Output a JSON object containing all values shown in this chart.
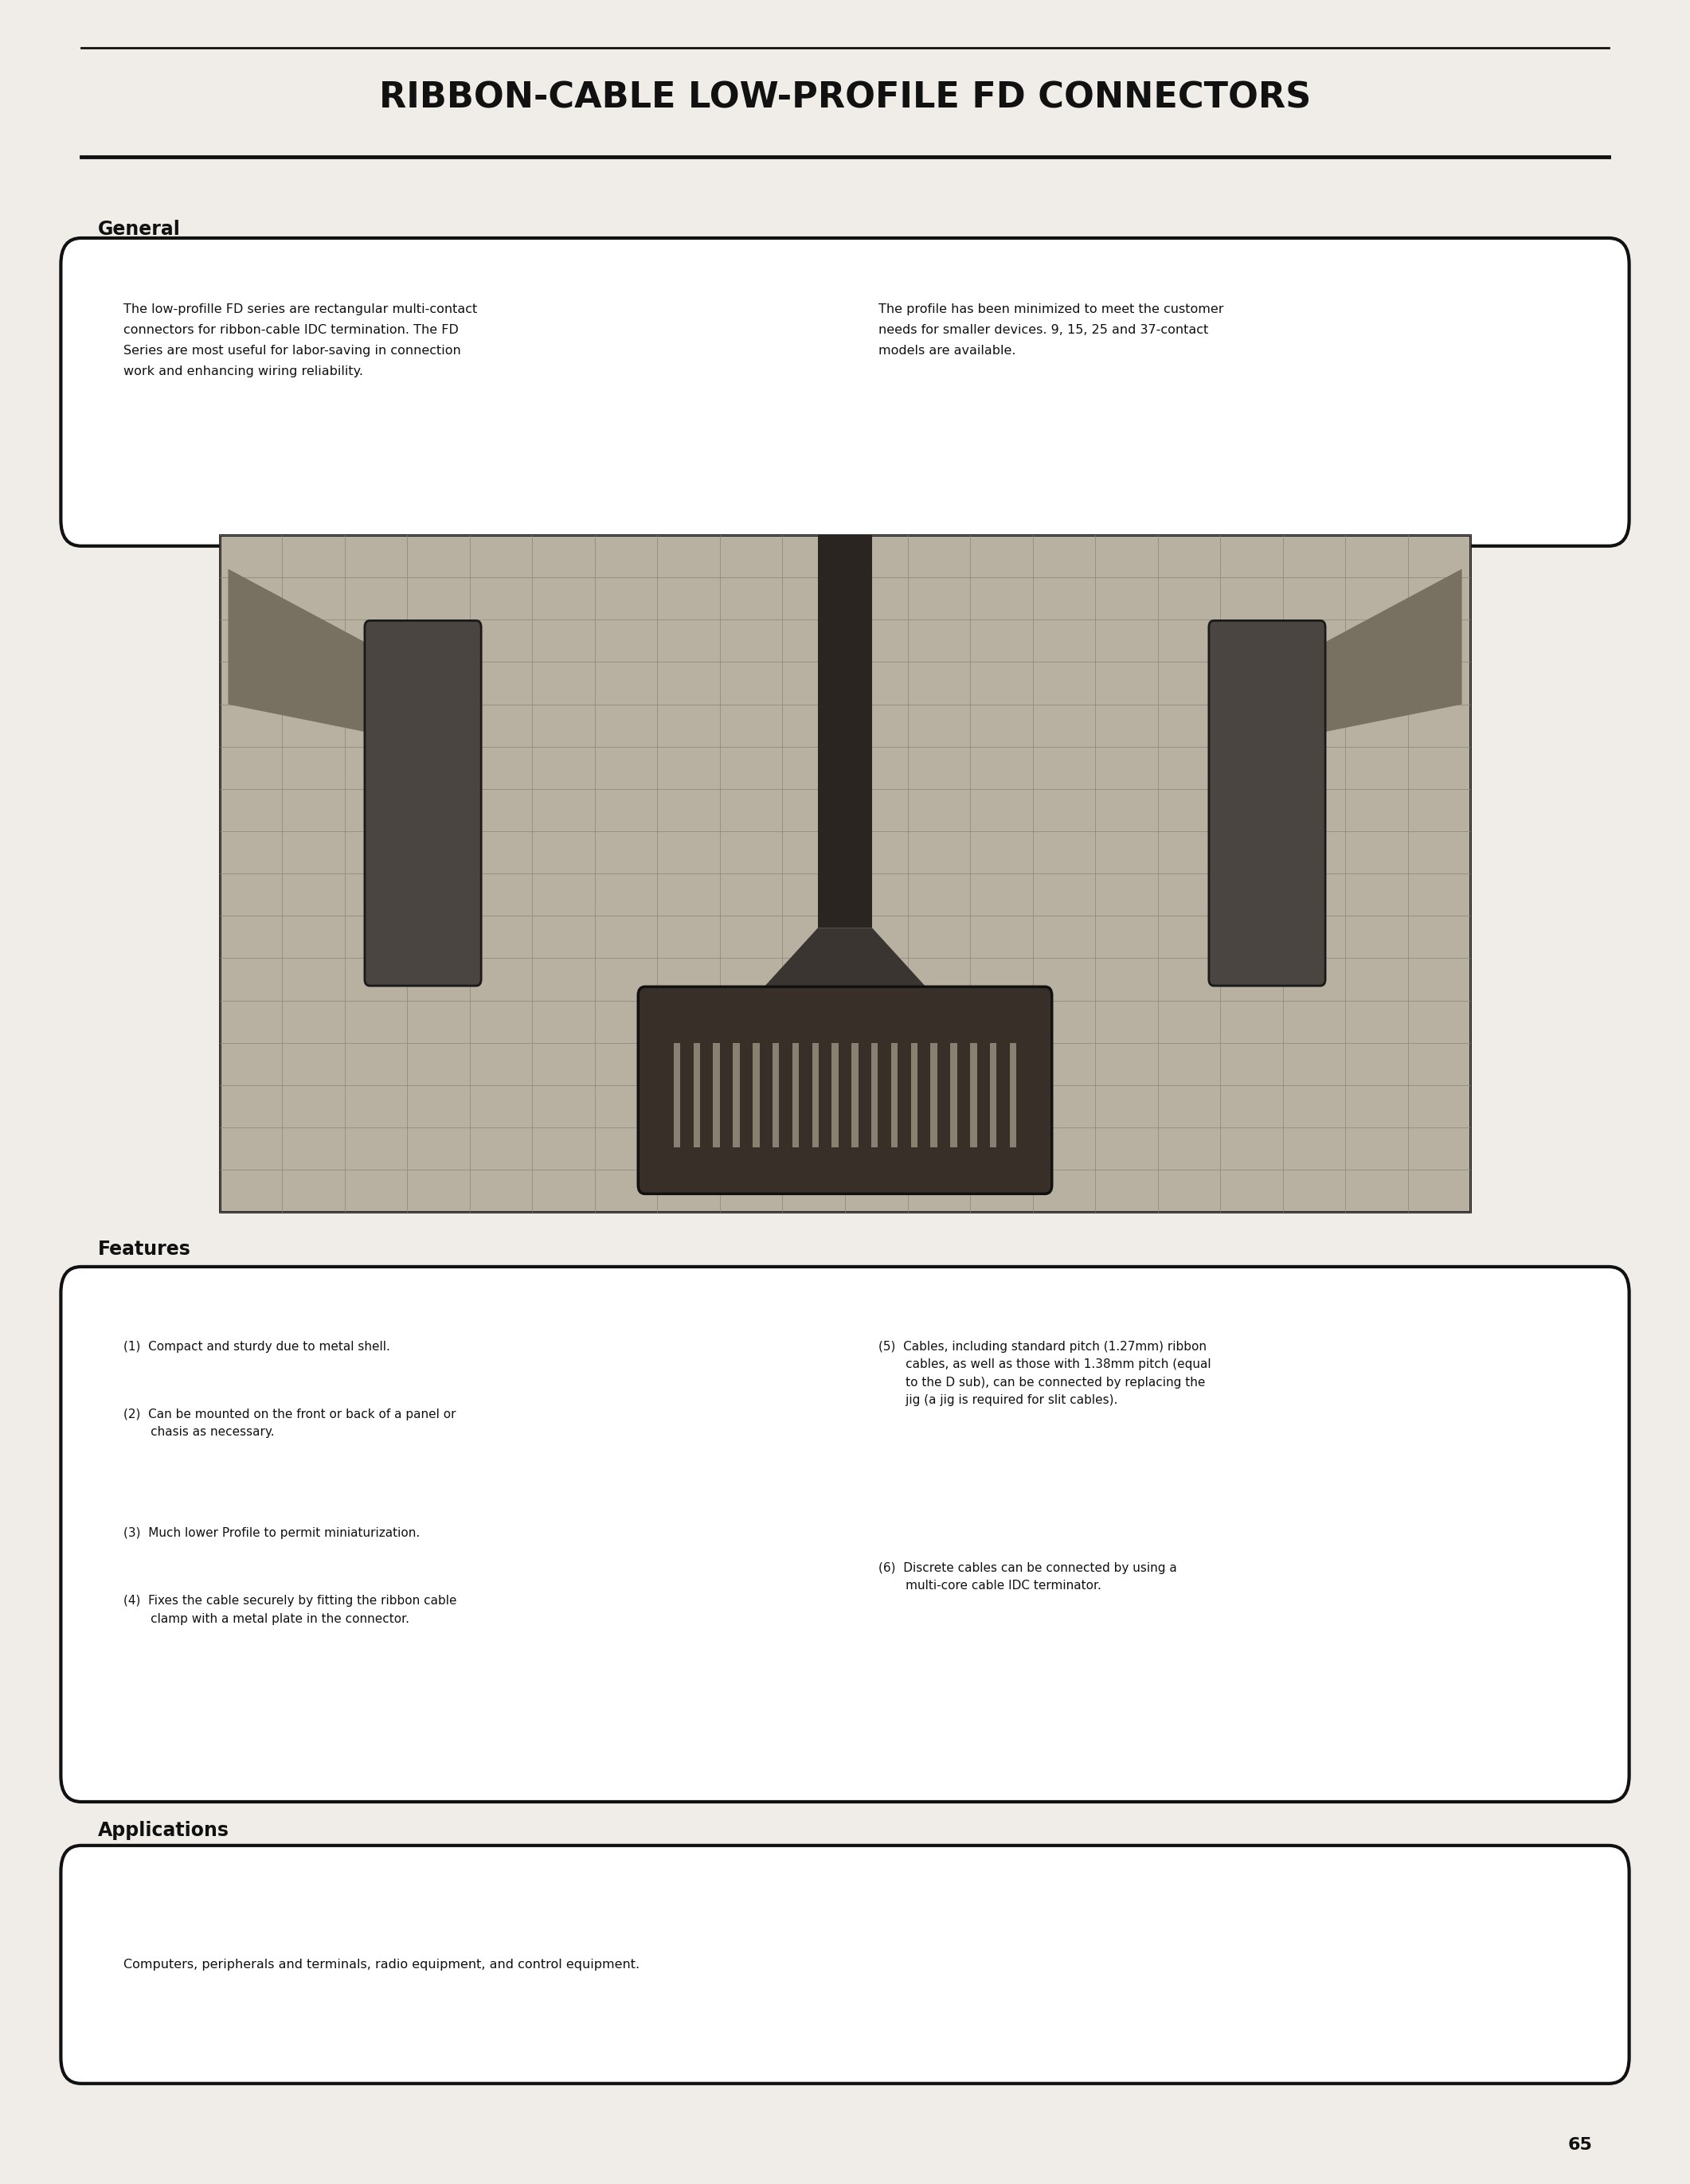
{
  "page_bg": "#f0ede8",
  "title": "RIBBON-CABLE LOW-PROFILE FD CONNECTORS",
  "title_fontsize": 32,
  "general_heading": "General",
  "general_text_left": "The low-profille FD series are rectangular multi-contact\nconnectors for ribbon-cable IDC termination. The FD\nSeries are most useful for labor-saving in connection\nwork and enhancing wiring reliability.",
  "general_text_right": "The profile has been minimized to meet the customer\nneeds for smaller devices. 9, 15, 25 and 37-contact\nmodels are available.",
  "features_heading": "Features",
  "features_left_1": "(1)  Compact and sturdy due to metal shell.",
  "features_left_2": "(2)  Can be mounted on the front or back of a panel or\n       chasis as necessary.",
  "features_left_3": "(3)  Much lower Profile to permit miniaturization.",
  "features_left_4": "(4)  Fixes the cable securely by fitting the ribbon cable\n       clamp with a metal plate in the connector.",
  "features_right_1": "(5)  Cables, including standard pitch (1.27mm) ribbon\n       cables, as well as those with 1.38mm pitch (equal\n       to the D sub), can be connected by replacing the\n       jig (a jig is required for slit cables).",
  "features_right_2": "(6)  Discrete cables can be connected by using a\n       multi-core cable IDC terminator.",
  "applications_heading": "Applications",
  "applications_text": "Computers, peripherals and terminals, radio equipment, and control equipment.",
  "page_number": "65",
  "text_color": "#111111",
  "box_border_color": "#111111",
  "line_color": "#111111",
  "white": "#ffffff",
  "photo_bg": "#b8b0a0",
  "photo_dark": "#2a2520",
  "photo_mid": "#5a5248",
  "photo_light": "#908880"
}
